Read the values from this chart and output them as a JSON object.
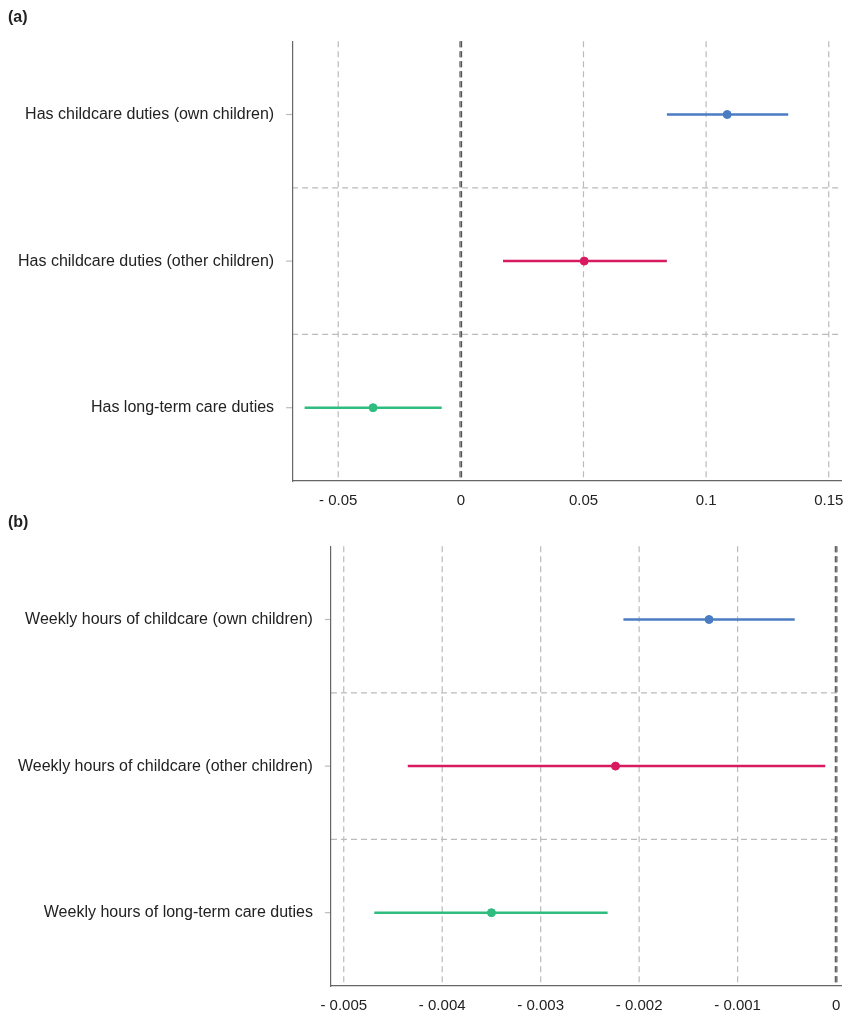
{
  "chart_data": [
    {
      "type": "scatter",
      "title": "(a)",
      "orientation": "horizontal",
      "categories": [
        "Has childcare duties (own children)",
        "Has childcare duties (other children)",
        "Has long-term care duties"
      ],
      "values": [
        0.1086,
        0.0503,
        -0.0358
      ],
      "errors": [
        [
          0.084,
          0.1335
        ],
        [
          0.0172,
          0.084
        ],
        [
          -0.0637,
          -0.0078
        ]
      ],
      "colors": [
        "#4a7cc4",
        "#d81b60",
        "#2ebd7f"
      ],
      "marker": "circle",
      "xlim": [
        -0.0688,
        0.155
      ],
      "xticks": [
        {
          "value": -0.05,
          "label": "- 0.05"
        },
        0,
        0.05,
        0.1,
        0.15
      ],
      "grid": true,
      "legend": false,
      "ref_lines": [
        {
          "axis": "x",
          "value": 0,
          "color": "#000000",
          "line_style": "dashed"
        }
      ]
    },
    {
      "type": "scatter",
      "title": "(b)",
      "orientation": "horizontal",
      "categories": [
        "Weekly hours of childcare (own children)",
        "Weekly hours of childcare (other children)",
        "Weekly hours of long-term care duties"
      ],
      "values": [
        -0.00129,
        -0.00224,
        -0.0035
      ],
      "errors": [
        [
          -0.00216,
          -0.00042
        ],
        [
          -0.00435,
          -0.00011
        ],
        [
          -0.00469,
          -0.00232
        ]
      ],
      "colors": [
        "#4a7cc4",
        "#d81b60",
        "#2ebd7f"
      ],
      "marker": "circle",
      "xlim": [
        -0.00513,
        5e-05
      ],
      "xticks": [
        {
          "value": -0.005,
          "label": "- 0.005"
        },
        {
          "value": -0.004,
          "label": "- 0.004"
        },
        {
          "value": -0.003,
          "label": "- 0.003"
        },
        {
          "value": -0.002,
          "label": "- 0.002"
        },
        {
          "value": -0.001,
          "label": "- 0.001"
        },
        0
      ],
      "grid": true,
      "legend": false,
      "ref_lines": [
        {
          "axis": "x",
          "value": 0,
          "color": "#000000",
          "line_style": "dashed"
        }
      ]
    }
  ]
}
